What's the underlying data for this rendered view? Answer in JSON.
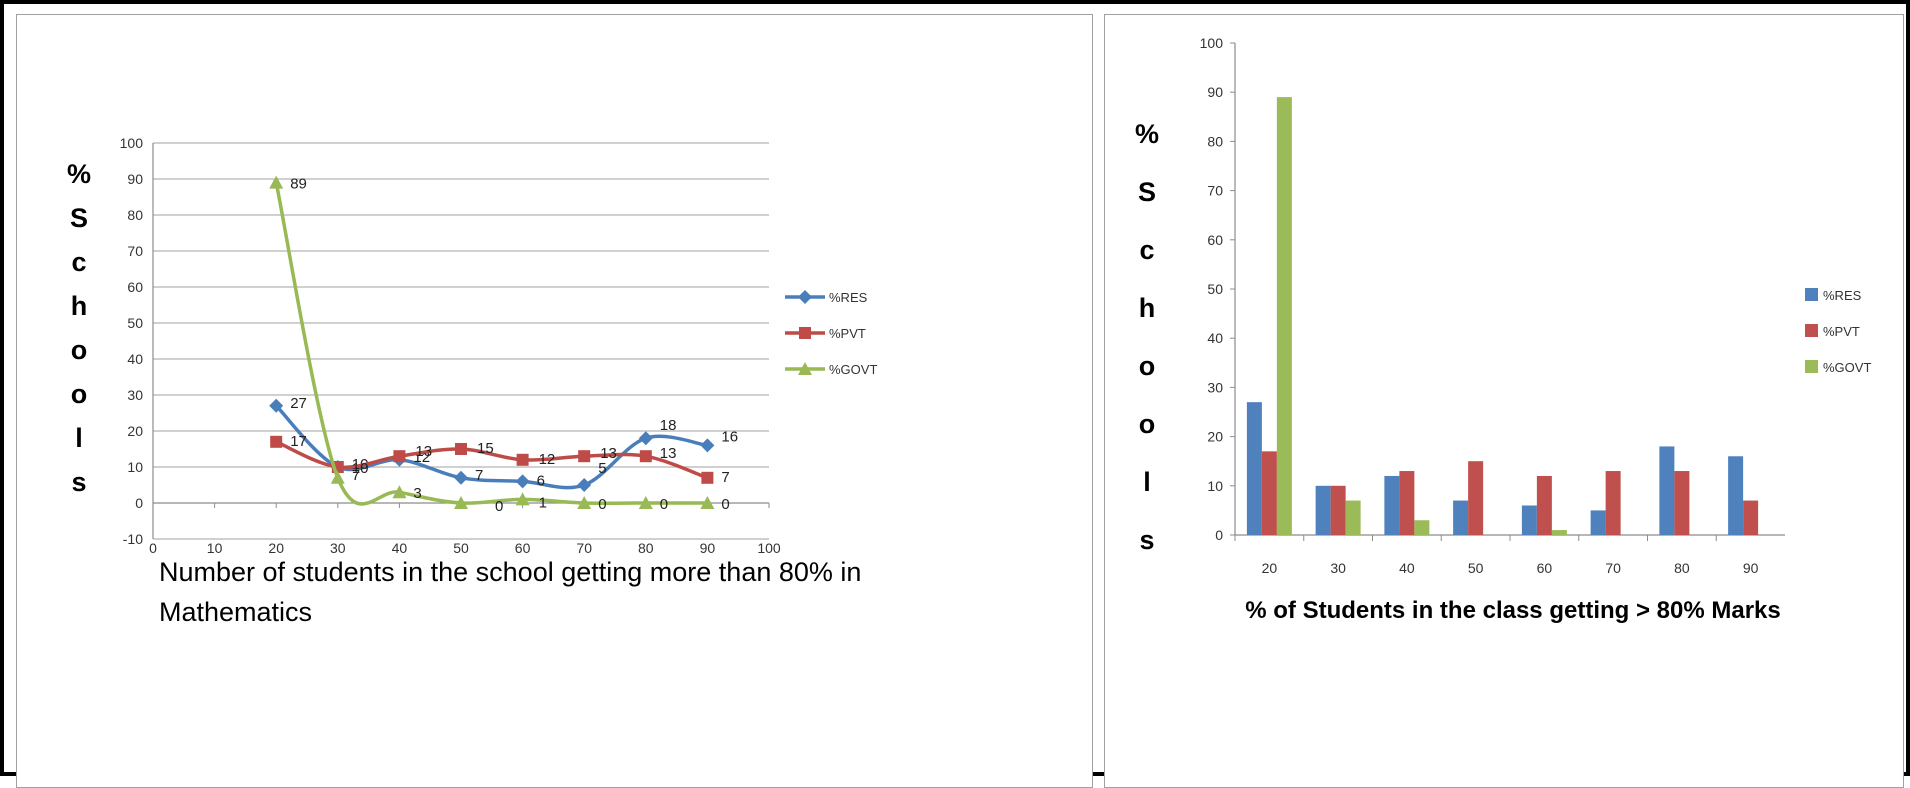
{
  "chart_data": [
    {
      "type": "line",
      "xlabel_lines": [
        "Number of students in the school getting more than 80% in",
        "Mathematics"
      ],
      "ylabel_letters": [
        "%",
        "S",
        "c",
        "h",
        "o",
        "o",
        "l",
        "s"
      ],
      "xlim": [
        0,
        100
      ],
      "ylim": [
        -10,
        100
      ],
      "x_ticks": [
        0,
        10,
        20,
        30,
        40,
        50,
        60,
        70,
        80,
        90,
        100
      ],
      "y_ticks": [
        -10,
        0,
        10,
        20,
        30,
        40,
        50,
        60,
        70,
        80,
        90,
        100
      ],
      "grid": true,
      "legend": "right",
      "x": [
        20,
        30,
        40,
        50,
        60,
        70,
        80,
        90
      ],
      "series": [
        {
          "name": "%RES",
          "values": [
            27,
            10,
            12,
            7,
            6,
            5,
            18,
            16
          ],
          "labels": [
            "27",
            "10",
            "12",
            "7",
            "6",
            "5",
            "18",
            "16"
          ],
          "color": "#4a7ebb",
          "marker": "diamond"
        },
        {
          "name": "%PVT",
          "values": [
            17,
            10,
            13,
            15,
            12,
            13,
            13,
            7
          ],
          "labels": [
            "17",
            "10",
            "13",
            "15",
            "12",
            "13",
            "13",
            "7"
          ],
          "color": "#be4b48",
          "marker": "square"
        },
        {
          "name": "%GOVT",
          "values": [
            89,
            7,
            3,
            0,
            1,
            0,
            0,
            0
          ],
          "labels": [
            "89",
            "7",
            "3",
            "0",
            "1",
            "0",
            "0",
            "0"
          ],
          "color": "#98b954",
          "marker": "triangle"
        }
      ]
    },
    {
      "type": "bar",
      "xlabel": "% of Students in the class getting > 80% Marks",
      "ylabel_letters": [
        "%",
        "S",
        "c",
        "h",
        "o",
        "o",
        "l",
        "s"
      ],
      "categories": [
        "20",
        "30",
        "40",
        "50",
        "60",
        "70",
        "80",
        "90"
      ],
      "ylim": [
        0,
        100
      ],
      "y_ticks": [
        0,
        10,
        20,
        30,
        40,
        50,
        60,
        70,
        80,
        90,
        100
      ],
      "grid": false,
      "legend": "right",
      "series": [
        {
          "name": "%RES",
          "values": [
            27,
            10,
            12,
            7,
            6,
            5,
            18,
            16
          ],
          "color": "#4f81bd"
        },
        {
          "name": "%PVT",
          "values": [
            17,
            10,
            13,
            15,
            12,
            13,
            13,
            7
          ],
          "color": "#c0504d"
        },
        {
          "name": "%GOVT",
          "values": [
            89,
            7,
            3,
            0,
            1,
            0,
            0,
            0
          ],
          "color": "#9bbb59"
        }
      ]
    }
  ]
}
